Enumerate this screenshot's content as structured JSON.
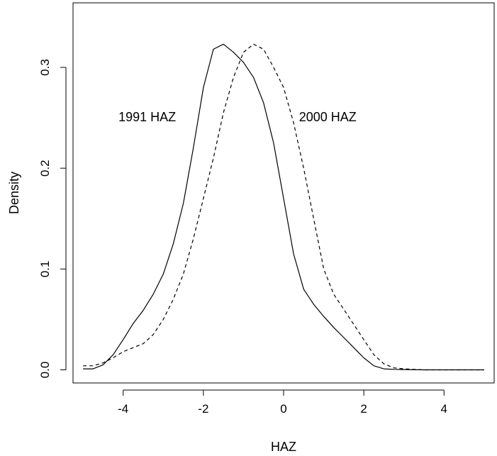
{
  "chart_data": {
    "type": "line",
    "title": "",
    "xlabel": "HAZ",
    "ylabel": "Density",
    "xlim": [
      -5.25,
      5.25
    ],
    "ylim": [
      -0.013,
      0.364
    ],
    "x_ticks": [
      -4,
      -2,
      0,
      2,
      4
    ],
    "x_tick_labels": [
      "-4",
      "-2",
      "0",
      "2",
      "4"
    ],
    "y_ticks": [
      0.0,
      0.1,
      0.2,
      0.3
    ],
    "y_tick_labels": [
      "0.0",
      "0.1",
      "0.2",
      "0.3"
    ],
    "grid": false,
    "legend": "none",
    "annotations": [
      {
        "text": "1991 HAZ",
        "x": -3.4,
        "y": 0.25
      },
      {
        "text": "2000 HAZ",
        "x": 1.1,
        "y": 0.25
      }
    ],
    "series": [
      {
        "name": "1991 HAZ",
        "style": "solid",
        "color": "#000000",
        "x": [
          -5.0,
          -4.75,
          -4.5,
          -4.25,
          -4.0,
          -3.75,
          -3.5,
          -3.25,
          -3.0,
          -2.75,
          -2.5,
          -2.25,
          -2.0,
          -1.75,
          -1.5,
          -1.25,
          -1.0,
          -0.75,
          -0.5,
          -0.25,
          0.0,
          0.25,
          0.5,
          0.75,
          1.0,
          1.25,
          1.5,
          1.75,
          2.0,
          2.25,
          2.5,
          2.75,
          3.0,
          3.5,
          4.0,
          4.5,
          5.0
        ],
        "y": [
          0.001,
          0.001,
          0.005,
          0.015,
          0.03,
          0.046,
          0.059,
          0.075,
          0.095,
          0.125,
          0.165,
          0.22,
          0.28,
          0.318,
          0.323,
          0.315,
          0.305,
          0.29,
          0.265,
          0.225,
          0.17,
          0.115,
          0.08,
          0.065,
          0.053,
          0.042,
          0.032,
          0.022,
          0.012,
          0.004,
          0.001,
          0.0005,
          0.0003,
          0.0,
          0.0,
          0.0,
          0.0
        ]
      },
      {
        "name": "2000 HAZ",
        "style": "dashed",
        "color": "#000000",
        "x": [
          -5.0,
          -4.75,
          -4.5,
          -4.25,
          -4.0,
          -3.75,
          -3.5,
          -3.25,
          -3.0,
          -2.75,
          -2.5,
          -2.25,
          -2.0,
          -1.75,
          -1.5,
          -1.25,
          -1.0,
          -0.75,
          -0.5,
          -0.25,
          0.0,
          0.25,
          0.5,
          0.75,
          1.0,
          1.25,
          1.5,
          1.75,
          2.0,
          2.25,
          2.5,
          2.75,
          3.0,
          3.5,
          4.0,
          4.5,
          5.0
        ],
        "y": [
          0.004,
          0.004,
          0.007,
          0.012,
          0.018,
          0.022,
          0.026,
          0.035,
          0.05,
          0.07,
          0.095,
          0.13,
          0.17,
          0.21,
          0.255,
          0.29,
          0.315,
          0.323,
          0.318,
          0.3,
          0.28,
          0.245,
          0.2,
          0.15,
          0.1,
          0.075,
          0.06,
          0.045,
          0.03,
          0.015,
          0.006,
          0.002,
          0.001,
          0.0,
          0.0,
          0.0,
          0.0
        ]
      }
    ]
  }
}
